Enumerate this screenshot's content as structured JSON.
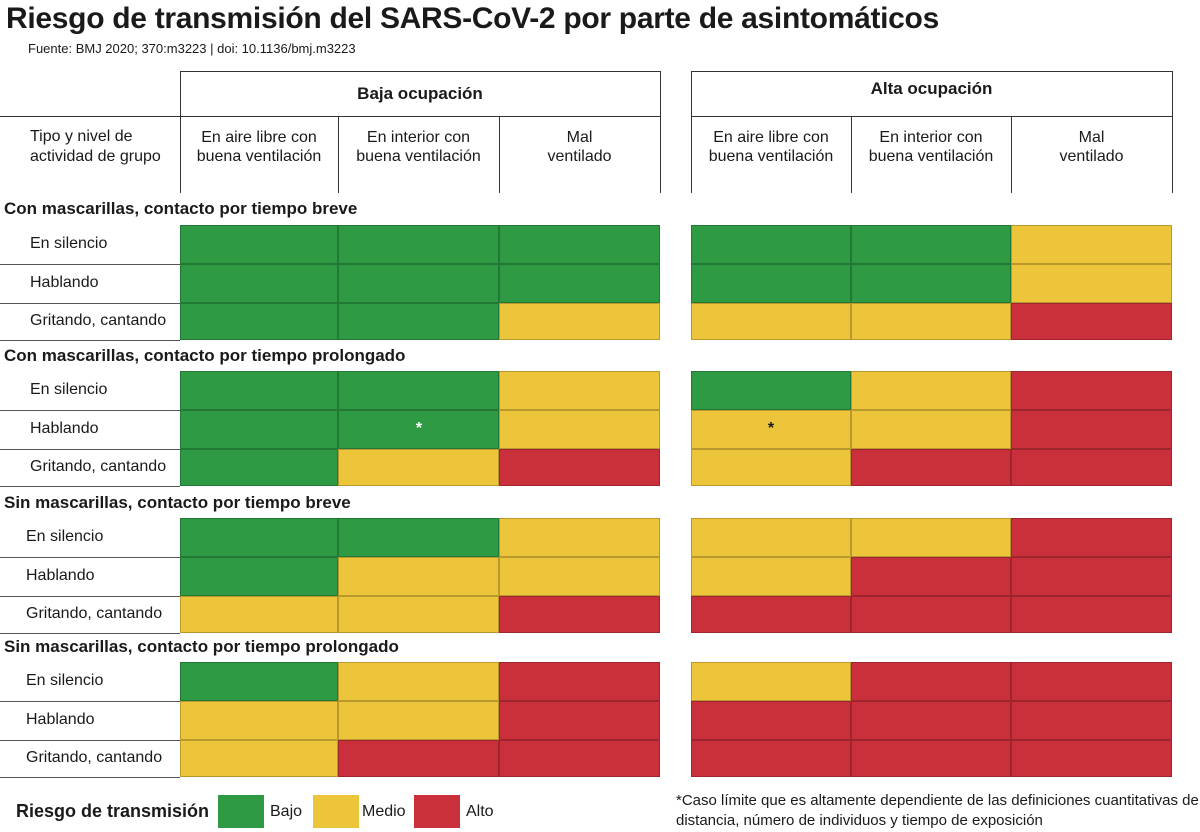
{
  "title": "Riesgo de transmisión del SARS-CoV-2 por parte de asintomáticos",
  "source": "Fuente: BMJ 2020; 370:m3223 | doi: 10.1136/bmj.m3223",
  "row_type_header": [
    "Tipo y nivel de",
    "actividad de grupo"
  ],
  "groups": [
    {
      "label": "Baja ocupación",
      "columns": [
        [
          "En aire libre con",
          "buena ventilación"
        ],
        [
          "En interior con",
          "buena ventilación"
        ],
        [
          "Mal",
          "ventilado"
        ]
      ]
    },
    {
      "label": "Alta ocupación",
      "columns": [
        [
          "En aire libre con",
          "buena ventilación"
        ],
        [
          "En interior con",
          "buena ventilación"
        ],
        [
          "Mal",
          "ventilado"
        ]
      ]
    }
  ],
  "colors": {
    "Bajo": "#2e9a44",
    "Medio": "#edc53b",
    "Alto": "#c9303b"
  },
  "legend": {
    "title": "Riesgo de transmisión",
    "items": [
      "Bajo",
      "Medio",
      "Alto"
    ]
  },
  "footnote": "*Caso límite que es altamente dependiente de las definiciones cuantitativas de distancia, número de individuos y tiempo de exposición",
  "chart_data": {
    "type": "heatmap",
    "title": "Riesgo de transmisión del SARS-CoV-2 por parte de asintomáticos",
    "levels": [
      "Bajo",
      "Medio",
      "Alto"
    ],
    "column_groups": [
      "Baja ocupación",
      "Alta ocupación"
    ],
    "columns": [
      "En aire libre con buena ventilación",
      "En interior con buena ventilación",
      "Mal ventilado"
    ],
    "sections": [
      {
        "title": "Con mascarillas, contacto por tiempo breve",
        "rows": [
          {
            "label": "En silencio",
            "values": [
              "Bajo",
              "Bajo",
              "Bajo",
              "Bajo",
              "Bajo",
              "Medio"
            ]
          },
          {
            "label": "Hablando",
            "values": [
              "Bajo",
              "Bajo",
              "Bajo",
              "Bajo",
              "Bajo",
              "Medio"
            ]
          },
          {
            "label": "Gritando, cantando",
            "values": [
              "Bajo",
              "Bajo",
              "Medio",
              "Medio",
              "Medio",
              "Alto"
            ]
          }
        ]
      },
      {
        "title": "Con mascarillas, contacto por tiempo prolongado",
        "rows": [
          {
            "label": "En silencio",
            "values": [
              "Bajo",
              "Bajo",
              "Medio",
              "Bajo",
              "Medio",
              "Alto"
            ]
          },
          {
            "label": "Hablando",
            "values": [
              "Bajo",
              "Bajo",
              "Medio",
              "Medio",
              "Medio",
              "Alto"
            ],
            "starred": [
              1,
              3
            ]
          },
          {
            "label": "Gritando, cantando",
            "values": [
              "Bajo",
              "Medio",
              "Alto",
              "Medio",
              "Alto",
              "Alto"
            ]
          }
        ]
      },
      {
        "title": "Sin mascarillas, contacto por tiempo breve",
        "rows": [
          {
            "label": "En silencio",
            "values": [
              "Bajo",
              "Bajo",
              "Medio",
              "Medio",
              "Medio",
              "Alto"
            ]
          },
          {
            "label": "Hablando",
            "values": [
              "Bajo",
              "Medio",
              "Medio",
              "Medio",
              "Alto",
              "Alto"
            ]
          },
          {
            "label": "Gritando, cantando",
            "values": [
              "Medio",
              "Medio",
              "Alto",
              "Alto",
              "Alto",
              "Alto"
            ]
          }
        ]
      },
      {
        "title": "Sin mascarillas, contacto por tiempo prolongado",
        "rows": [
          {
            "label": "En silencio",
            "values": [
              "Bajo",
              "Medio",
              "Alto",
              "Medio",
              "Alto",
              "Alto"
            ]
          },
          {
            "label": "Hablando",
            "values": [
              "Medio",
              "Medio",
              "Alto",
              "Alto",
              "Alto",
              "Alto"
            ]
          },
          {
            "label": "Gritando, cantando",
            "values": [
              "Medio",
              "Alto",
              "Alto",
              "Alto",
              "Alto",
              "Alto"
            ]
          }
        ]
      }
    ]
  }
}
